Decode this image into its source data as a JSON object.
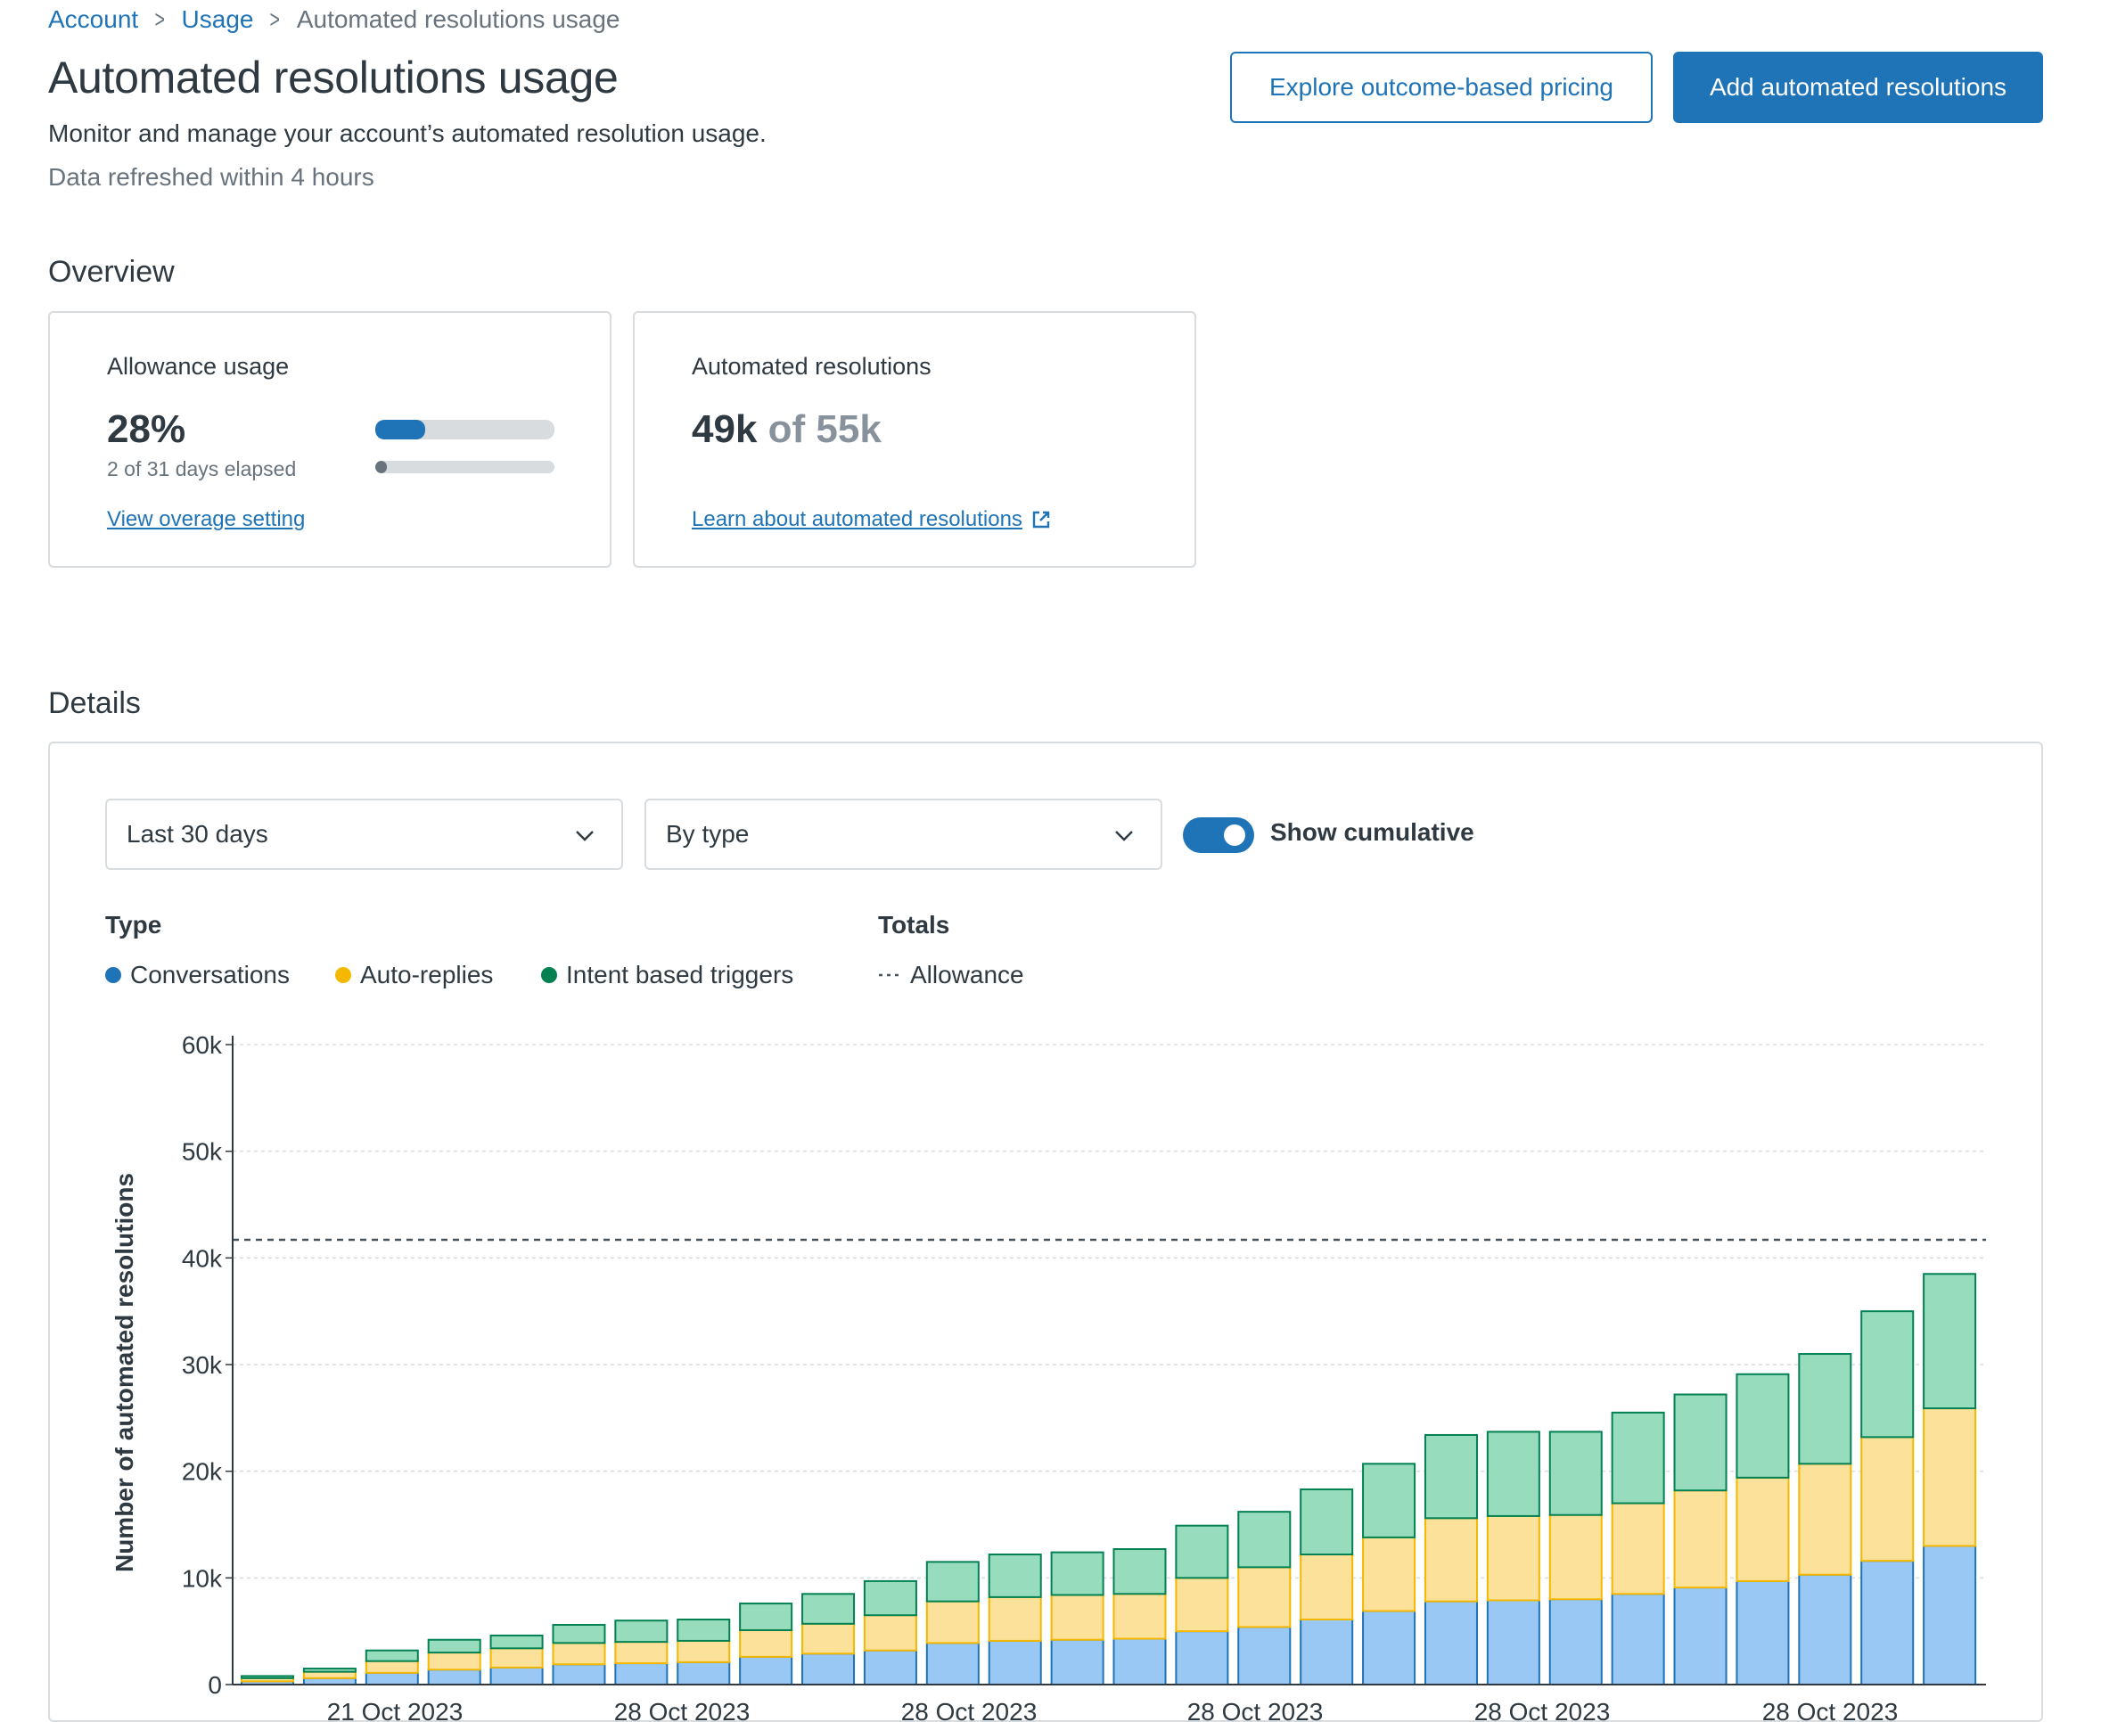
{
  "breadcrumb": {
    "account": "Account",
    "usage": "Usage",
    "current": "Automated resolutions usage"
  },
  "header": {
    "title": "Automated resolutions usage",
    "subtitle": "Monitor and manage your account’s automated resolution usage.",
    "refresh_note": "Data refreshed within 4 hours",
    "explore_label": "Explore outcome-based pricing",
    "add_label": "Add automated resolutions"
  },
  "overview": {
    "title": "Overview",
    "allowance": {
      "label": "Allowance usage",
      "percent": "28%",
      "usage_fraction": 0.28,
      "days_text": "2 of 31 days elapsed",
      "days_fraction": 0.065,
      "link": "View overage setting"
    },
    "resolutions": {
      "label": "Automated resolutions",
      "used": "49k",
      "of_total": "of 55k",
      "link": "Learn about automated resolutions"
    }
  },
  "details": {
    "title": "Details",
    "period_value": "Last 30 days",
    "group_value": "By type",
    "cumulative_label": "Show cumulative",
    "cumulative_on": true,
    "type_heading": "Type",
    "totals_heading": "Totals"
  },
  "colors": {
    "accent": "#1f73b7",
    "conversations_fill": "#99c8f5",
    "conversations_line": "#1f73b7",
    "autoreplies_fill": "#fce19a",
    "autoreplies_line": "#f5b800",
    "intent_fill": "#97dcbc",
    "intent_line": "#038153"
  },
  "chart_data": {
    "type": "bar",
    "stacked": true,
    "ylabel": "Number of automated resolutions",
    "ylim": [
      0,
      60000
    ],
    "yticks": [
      "0",
      "10k",
      "20k",
      "30k",
      "40k",
      "50k",
      "60k"
    ],
    "x_tick_labels": [
      "21 Oct 2023",
      "28 Oct 2023",
      "28 Oct 2023",
      "28 Oct 2023",
      "28 Oct 2023",
      "28 Oct 2023"
    ],
    "allowance": 41700,
    "allowance_label": "Allowance",
    "legend_placement": "top-left",
    "grid": true,
    "series": [
      {
        "name": "Conversations",
        "values": [
          300,
          600,
          1100,
          1400,
          1600,
          1900,
          2000,
          2100,
          2600,
          2900,
          3200,
          3900,
          4100,
          4200,
          4300,
          5000,
          5400,
          6100,
          6900,
          7800,
          7900,
          8000,
          8500,
          9100,
          9700,
          10300,
          11600,
          13000
        ]
      },
      {
        "name": "Auto-replies",
        "values": [
          300,
          600,
          1100,
          1600,
          1800,
          2000,
          2000,
          2000,
          2500,
          2800,
          3300,
          3900,
          4100,
          4200,
          4200,
          5000,
          5600,
          6100,
          6900,
          7800,
          7900,
          7900,
          8500,
          9100,
          9700,
          10400,
          11600,
          12900
        ]
      },
      {
        "name": "Intent based triggers",
        "values": [
          200,
          300,
          1000,
          1200,
          1200,
          1700,
          2000,
          2000,
          2500,
          2800,
          3200,
          3700,
          4000,
          4000,
          4200,
          4900,
          5200,
          6100,
          6900,
          7800,
          7900,
          7800,
          8500,
          9000,
          9700,
          10300,
          11800,
          12600
        ]
      }
    ]
  }
}
